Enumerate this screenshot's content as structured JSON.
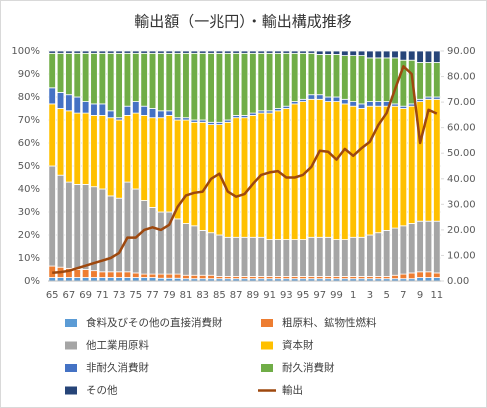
{
  "chart_data": {
    "type": "stacked_bar_line",
    "title": "輸出額（一兆円）・輸出構成推移",
    "categories": [
      "65",
      null,
      "67",
      null,
      "69",
      null,
      "71",
      null,
      "73",
      null,
      "75",
      null,
      "77",
      null,
      "79",
      null,
      "81",
      null,
      "83",
      null,
      "85",
      null,
      "87",
      null,
      "89",
      null,
      "91",
      null,
      "93",
      null,
      "95",
      null,
      "97",
      null,
      "99",
      null,
      "1",
      null,
      "3",
      null,
      "5",
      null,
      "7",
      null,
      "9",
      null,
      "11"
    ],
    "series": [
      {
        "name": "食料及びその他の直接消費財",
        "color": "#5b9bd5",
        "values": [
          1.5,
          1.5,
          1.5,
          1.5,
          1.5,
          1.5,
          1.5,
          1.5,
          1.5,
          1.5,
          1.5,
          1.5,
          1.5,
          1.2,
          1.2,
          1.2,
          1,
          1,
          1,
          1,
          1,
          1,
          1,
          1,
          1,
          1,
          1,
          1,
          1,
          1,
          1,
          1,
          1,
          1,
          1,
          1,
          1,
          1,
          1,
          1,
          1,
          1,
          1,
          1,
          1.5,
          1.5,
          1.5
        ]
      },
      {
        "name": "粗原料、鉱物性燃料",
        "color": "#ed7d31",
        "values": [
          5,
          4.5,
          4,
          3.5,
          3.5,
          3,
          2.5,
          2.5,
          2.5,
          2.5,
          2,
          1.5,
          1.5,
          1.8,
          1.8,
          1.8,
          1.5,
          1.5,
          1.5,
          1.5,
          1,
          1,
          1,
          1,
          1,
          1,
          1,
          1,
          1,
          1,
          1,
          1,
          1,
          1,
          1,
          1,
          1,
          1,
          1,
          1,
          1,
          1.5,
          2,
          2.5,
          2.5,
          2.5,
          2
        ]
      },
      {
        "name": "他工業用原料",
        "color": "#a5a5a5",
        "values": [
          43.5,
          40,
          37.5,
          37,
          37,
          36.5,
          36,
          33,
          32,
          39,
          36.5,
          32,
          29,
          27,
          27,
          24,
          22.5,
          21.5,
          19.5,
          18.5,
          18,
          17,
          17,
          17,
          17,
          17,
          16,
          16,
          16,
          16,
          16,
          17,
          17,
          17,
          16,
          16,
          17,
          17,
          18,
          19,
          20,
          20.5,
          21,
          21.5,
          22,
          22,
          22.5
        ]
      },
      {
        "name": "資本財",
        "color": "#ffc000",
        "values": [
          27,
          29,
          31,
          31,
          31,
          31,
          32,
          34,
          34,
          29,
          33,
          37,
          39,
          41,
          42,
          43,
          45,
          45,
          47,
          47,
          48,
          50,
          52,
          52,
          53,
          54,
          55,
          56,
          57,
          59,
          60,
          60,
          60,
          59,
          60,
          59,
          57,
          56,
          56,
          55,
          54,
          53,
          51,
          51,
          52,
          53,
          53
        ]
      },
      {
        "name": "非耐久消費財",
        "color": "#4472c4",
        "values": [
          7,
          7,
          7,
          7,
          5,
          5,
          5,
          3,
          1,
          4,
          5,
          4,
          4,
          3,
          2,
          1,
          1,
          1,
          1,
          1,
          1,
          1,
          1,
          1,
          1,
          1,
          1,
          1,
          1,
          1,
          1,
          2,
          2,
          2,
          2,
          2,
          2,
          2,
          2,
          2,
          2,
          1,
          1,
          1,
          1,
          1,
          1
        ]
      },
      {
        "name": "耐久消費財",
        "color": "#70ad47",
        "values": [
          15,
          17,
          18,
          19,
          21,
          22,
          22,
          25,
          28,
          23,
          21,
          23,
          24,
          25,
          25,
          28,
          28,
          29,
          29,
          30,
          30,
          29,
          27,
          27,
          26,
          25,
          25,
          24,
          23,
          21,
          20,
          18,
          17.5,
          18.5,
          18.5,
          19,
          20,
          21,
          19,
          19,
          19,
          20,
          20,
          19,
          16,
          15,
          15
        ]
      },
      {
        "name": "その他",
        "color": "#264478",
        "values": [
          1,
          1,
          1,
          1,
          1,
          1,
          1,
          1,
          1,
          1,
          1,
          1,
          1,
          1,
          1,
          1,
          1,
          1,
          1,
          1,
          1,
          1,
          1,
          1,
          1,
          1,
          1,
          1,
          1,
          1,
          1,
          1,
          1.5,
          1.5,
          1.5,
          2,
          2,
          2,
          3,
          3,
          3,
          3,
          4,
          4,
          5,
          5,
          5
        ]
      },
      {
        "name": "輸出",
        "color": "#9e480e",
        "axis": "y2",
        "values": [
          3.2,
          3.5,
          4,
          5,
          6,
          7,
          8,
          9,
          11,
          17,
          17,
          20,
          21,
          20,
          22,
          29,
          33.5,
          34.5,
          35,
          40,
          42,
          35,
          33,
          34,
          38,
          41.5,
          42.5,
          43,
          40.5,
          40.5,
          41.5,
          44.7,
          51,
          50.6,
          47.5,
          51.7,
          49,
          52,
          54.5,
          61,
          65.7,
          75,
          84,
          81,
          54,
          67,
          65.5
        ]
      }
    ],
    "ylim": [
      0,
      100
    ],
    "yticks": [
      {
        "value": 0,
        "label": "0%"
      },
      {
        "value": 10,
        "label": "10%"
      },
      {
        "value": 20,
        "label": "20%"
      },
      {
        "value": 30,
        "label": "30%"
      },
      {
        "value": 40,
        "label": "40%"
      },
      {
        "value": 50,
        "label": "50%"
      },
      {
        "value": 60,
        "label": "60%"
      },
      {
        "value": 70,
        "label": "70%"
      },
      {
        "value": 80,
        "label": "80%"
      },
      {
        "value": 90,
        "label": "90%"
      },
      {
        "value": 100,
        "label": "100%"
      }
    ],
    "y2lim": [
      0,
      90
    ],
    "y2ticks": [
      {
        "value": 0,
        "label": "0.00"
      },
      {
        "value": 10,
        "label": "10.00"
      },
      {
        "value": 20,
        "label": "20.00"
      },
      {
        "value": 30,
        "label": "30.00"
      },
      {
        "value": 40,
        "label": "40.00"
      },
      {
        "value": 50,
        "label": "50.00"
      },
      {
        "value": 60,
        "label": "60.00"
      },
      {
        "value": 70,
        "label": "70.00"
      },
      {
        "value": 80,
        "label": "80.00"
      },
      {
        "value": 90,
        "label": "90.00"
      }
    ],
    "grid": true,
    "legend": "bottom"
  }
}
